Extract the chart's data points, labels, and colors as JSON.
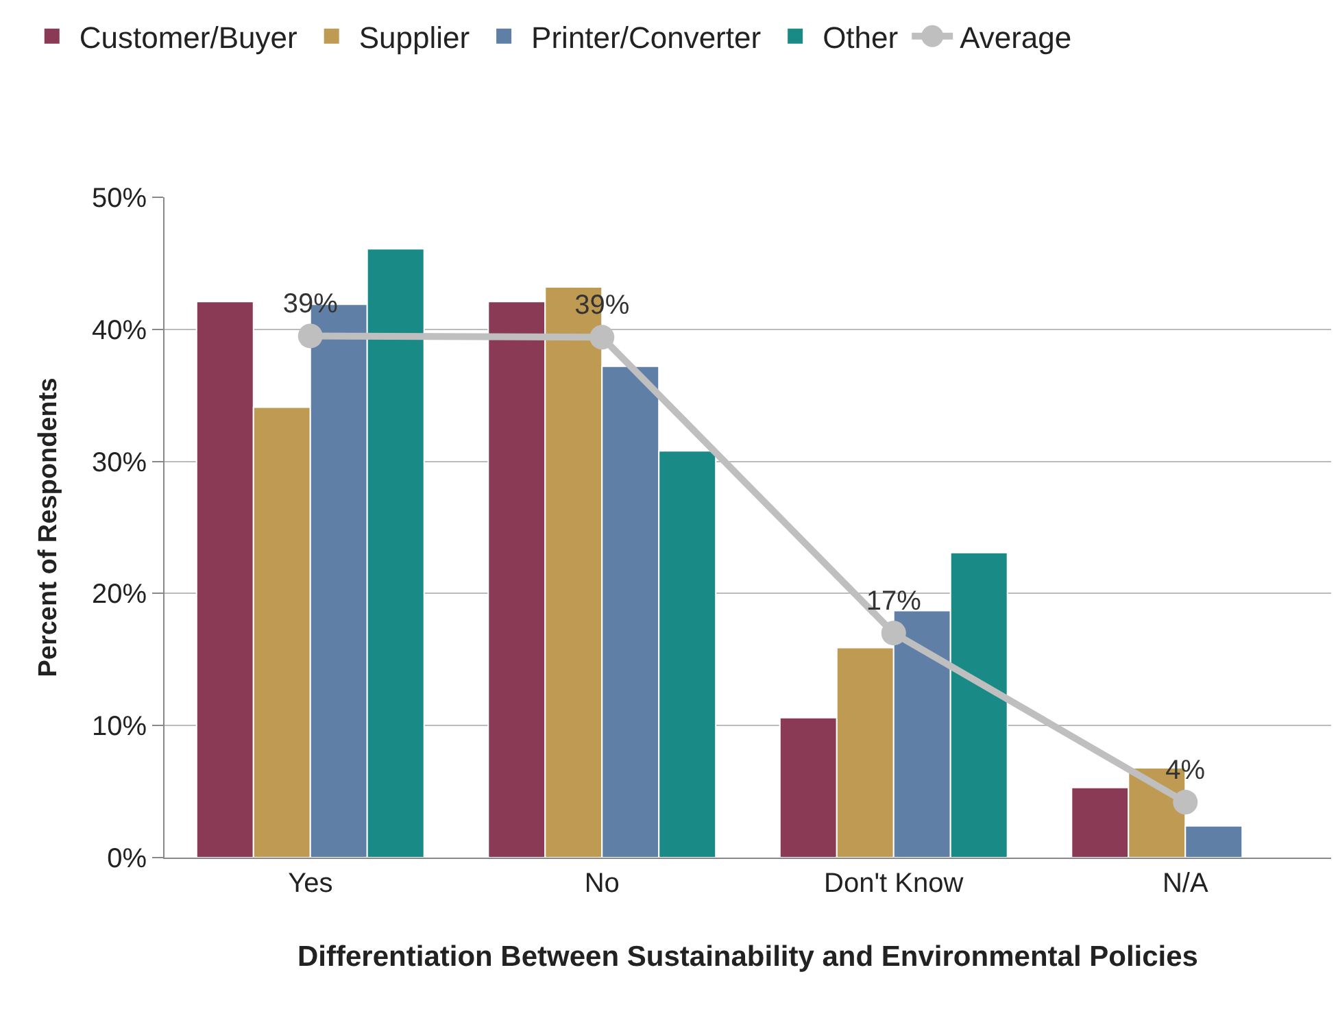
{
  "chart_data": {
    "type": "bar",
    "xlabel": "Differentiation Between Sustainability and Environmental Policies",
    "ylabel": "Percent of Respondents",
    "categories": [
      "Yes",
      "No",
      "Don't Know",
      "N/A"
    ],
    "series": [
      {
        "name": "Customer/Buyer",
        "color": "#8b3a55",
        "values": [
          42.1,
          42.1,
          10.6,
          5.3
        ]
      },
      {
        "name": "Supplier",
        "color": "#bf9a52",
        "values": [
          34.1,
          43.2,
          15.9,
          6.8
        ]
      },
      {
        "name": "Printer/Converter",
        "color": "#5f7fa6",
        "values": [
          41.9,
          37.2,
          18.7,
          2.4
        ]
      },
      {
        "name": "Other",
        "color": "#1a8a87",
        "values": [
          46.1,
          30.8,
          23.1,
          null
        ]
      },
      {
        "name": "Average",
        "type": "line",
        "color": "#bfbfbf",
        "values": [
          39.5,
          39.4,
          17.0,
          4.2
        ],
        "value_labels": [
          "39%",
          "39%",
          "17%",
          "4%"
        ],
        "marker": "circle",
        "line_style": "solid"
      }
    ],
    "ylim": [
      0,
      50
    ],
    "yticks": [
      {
        "value": 0,
        "label": "0%"
      },
      {
        "value": 10,
        "label": "10%"
      },
      {
        "value": 20,
        "label": "20%"
      },
      {
        "value": 30,
        "label": "30%"
      },
      {
        "value": 40,
        "label": "40%"
      },
      {
        "value": 50,
        "label": "50%"
      }
    ],
    "grid": "y",
    "legend": "top"
  }
}
